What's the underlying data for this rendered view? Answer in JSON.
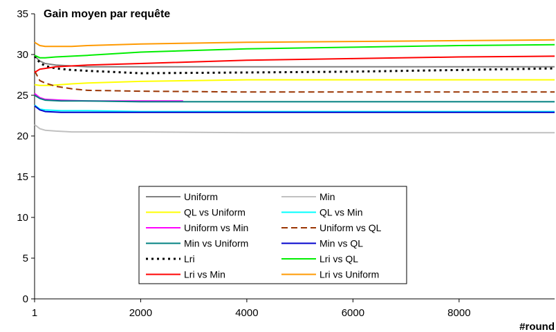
{
  "chart_data": {
    "type": "line",
    "title": "Gain moyen par requête",
    "xlabel": "#round",
    "ylabel": "",
    "xlim": [
      1,
      9800
    ],
    "ylim": [
      0,
      35
    ],
    "xticks": [
      1,
      2000,
      4000,
      6000,
      8000
    ],
    "yticks": [
      0,
      5,
      10,
      15,
      20,
      25,
      30,
      35
    ],
    "legend": "center-left, 2 columns",
    "grid": false,
    "series": [
      {
        "name": "Uniform",
        "color": "#808080",
        "dash": "solid",
        "x": [
          1,
          100,
          200,
          400,
          700,
          1000,
          2000,
          4000,
          6000,
          8000,
          9800
        ],
        "y": [
          29.8,
          29.2,
          28.9,
          28.7,
          28.6,
          28.5,
          28.5,
          28.5,
          28.5,
          28.5,
          28.5
        ]
      },
      {
        "name": "Min",
        "color": "#c0c0c0",
        "dash": "solid",
        "x": [
          1,
          100,
          200,
          400,
          700,
          1000,
          2000,
          4000,
          6000,
          8000,
          9800
        ],
        "y": [
          21.4,
          20.9,
          20.7,
          20.6,
          20.5,
          20.5,
          20.5,
          20.4,
          20.4,
          20.4,
          20.4
        ]
      },
      {
        "name": "QL vs Uniform",
        "color": "#ffff00",
        "dash": "solid",
        "x": [
          1,
          100,
          300,
          700,
          1000,
          2000,
          4000,
          6000,
          8000,
          9800
        ],
        "y": [
          26.3,
          26.2,
          26.2,
          26.4,
          26.5,
          26.7,
          26.9,
          26.9,
          26.9,
          26.9
        ]
      },
      {
        "name": "QL vs Min",
        "color": "#00ffff",
        "dash": "solid",
        "x": [
          1,
          100,
          200,
          500,
          1000,
          2000,
          4000,
          6000,
          8000,
          9800
        ],
        "y": [
          23.8,
          23.3,
          23.2,
          23.1,
          23.1,
          23.0,
          23.0,
          23.0,
          23.0,
          23.0
        ]
      },
      {
        "name": "Uniform vs Min",
        "color": "#ff00ff",
        "dash": "solid",
        "x": [
          1,
          100,
          200,
          500,
          1000,
          2000,
          2800
        ],
        "y": [
          25.2,
          24.7,
          24.5,
          24.4,
          24.3,
          24.3,
          24.3
        ]
      },
      {
        "name": "Uniform vs QL",
        "color": "#993300",
        "dash": "dashed",
        "x": [
          1,
          100,
          200,
          400,
          700,
          1000,
          2000,
          4000,
          6000,
          8000,
          9800
        ],
        "y": [
          28.0,
          26.8,
          26.5,
          26.1,
          25.8,
          25.6,
          25.5,
          25.4,
          25.4,
          25.4,
          25.4
        ]
      },
      {
        "name": "Min vs Uniform",
        "color": "#008080",
        "dash": "solid",
        "x": [
          1,
          100,
          200,
          500,
          1000,
          2000,
          4000,
          6000,
          8000,
          9800
        ],
        "y": [
          25.0,
          24.6,
          24.4,
          24.3,
          24.3,
          24.2,
          24.2,
          24.2,
          24.2,
          24.2
        ]
      },
      {
        "name": "Min vs QL",
        "color": "#0000cc",
        "dash": "solid",
        "x": [
          1,
          100,
          200,
          500,
          1000,
          2000,
          4000,
          6000,
          8000,
          9800
        ],
        "y": [
          23.7,
          23.2,
          23.0,
          22.9,
          22.9,
          22.9,
          22.9,
          22.9,
          22.9,
          22.9
        ]
      },
      {
        "name": "Lri",
        "color": "#000000",
        "dash": "dotted",
        "x": [
          1,
          100,
          200,
          400,
          700,
          1000,
          2000,
          4000,
          6000,
          8000,
          9800
        ],
        "y": [
          29.8,
          29.0,
          28.6,
          28.3,
          28.1,
          28.0,
          27.7,
          27.8,
          27.9,
          28.1,
          28.3
        ]
      },
      {
        "name": "Lri vs QL",
        "color": "#00ee00",
        "dash": "solid",
        "x": [
          1,
          100,
          200,
          400,
          700,
          1000,
          2000,
          4000,
          6000,
          8000,
          9800
        ],
        "y": [
          29.9,
          29.6,
          29.6,
          29.7,
          29.8,
          29.9,
          30.3,
          30.7,
          30.9,
          31.1,
          31.2
        ]
      },
      {
        "name": "Lri vs Min",
        "color": "#ff0000",
        "dash": "solid",
        "x": [
          1,
          100,
          200,
          400,
          700,
          1000,
          2000,
          4000,
          6000,
          8000,
          9800
        ],
        "y": [
          27.8,
          28.2,
          28.3,
          28.5,
          28.6,
          28.7,
          28.9,
          29.3,
          29.5,
          29.7,
          29.8
        ]
      },
      {
        "name": "Lri vs Uniform",
        "color": "#ff9900",
        "dash": "solid",
        "x": [
          1,
          100,
          200,
          400,
          700,
          1000,
          2000,
          4000,
          6000,
          8000,
          9800
        ],
        "y": [
          31.5,
          31.1,
          31.0,
          31.0,
          31.0,
          31.1,
          31.3,
          31.5,
          31.6,
          31.7,
          31.8
        ]
      }
    ]
  }
}
